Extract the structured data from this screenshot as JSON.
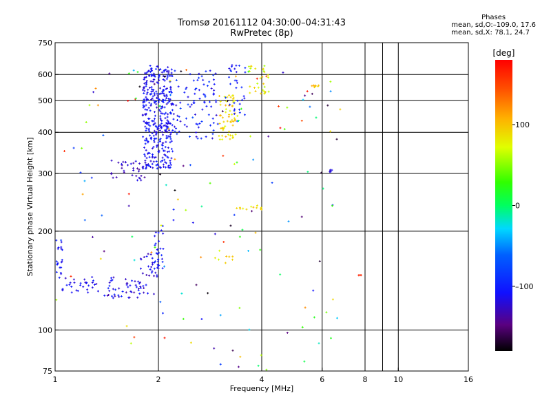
{
  "title_line1": "Tromsø 20161112 04:30:00–04:31:43",
  "title_line2": "RwPretec (8p)",
  "phases": {
    "title": "Phases",
    "line1": "mean, sd,O:–109.0, 17.6",
    "line2": "mean, sd,X:  78.1, 24.7"
  },
  "chart_data": {
    "type": "scatter",
    "xlabel": "Frequency [MHz]",
    "ylabel": "Stationary phase Virtual Height [km]",
    "xscale": "log",
    "yscale": "log",
    "xlim": [
      1,
      16
    ],
    "ylim": [
      75,
      750
    ],
    "xticks": [
      1,
      2,
      4,
      6,
      8,
      10,
      16
    ],
    "xtick_labels": [
      "1",
      "2",
      "4",
      "6",
      "8",
      "10",
      "16"
    ],
    "xgrid": [
      2,
      4,
      6,
      8,
      10
    ],
    "xminor": [
      9
    ],
    "yticks": [
      75,
      100,
      200,
      300,
      400,
      500,
      600,
      750
    ],
    "ytick_labels": [
      "75",
      "100",
      "200",
      "300",
      "400",
      "500",
      "600",
      "750"
    ],
    "ygrid": [
      100,
      200,
      300,
      400,
      500,
      600
    ],
    "grid": true,
    "colorbar": {
      "label": "[deg]",
      "range": [
        -180,
        180
      ],
      "ticks": [
        100,
        0,
        -100
      ],
      "tick_labels": [
        "100",
        "0",
        "–100"
      ]
    },
    "series": [
      {
        "mode": "O",
        "phase_mean": -109.0,
        "phase_sd": 17.6
      },
      {
        "mode": "X",
        "phase_mean": 78.1,
        "phase_sd": 24.7
      }
    ],
    "clusters": [
      {
        "x_range": [
          1.0,
          1.05
        ],
        "y_range": [
          140,
          195
        ],
        "phase_range": [
          -120,
          -95
        ],
        "count": 20
      },
      {
        "x_range": [
          1.05,
          1.35
        ],
        "y_range": [
          128,
          145
        ],
        "phase_range": [
          -130,
          -100
        ],
        "count": 30
      },
      {
        "x_range": [
          1.35,
          1.75
        ],
        "y_range": [
          125,
          145
        ],
        "phase_range": [
          -140,
          -95
        ],
        "count": 40
      },
      {
        "x_range": [
          1.75,
          2.0
        ],
        "y_range": [
          128,
          175
        ],
        "phase_range": [
          -135,
          -95
        ],
        "count": 40
      },
      {
        "x_range": [
          1.95,
          2.07
        ],
        "y_range": [
          150,
          210
        ],
        "phase_range": [
          -120,
          -95
        ],
        "count": 25
      },
      {
        "x_range": [
          1.45,
          1.85
        ],
        "y_range": [
          285,
          330
        ],
        "phase_range": [
          -140,
          -110
        ],
        "count": 35
      },
      {
        "x_range": [
          1.8,
          2.2
        ],
        "y_range": [
          310,
          640
        ],
        "phase_range": [
          -125,
          -95
        ],
        "count": 380
      },
      {
        "x_range": [
          2.2,
          3.0
        ],
        "y_range": [
          380,
          620
        ],
        "phase_range": [
          -125,
          -80
        ],
        "count": 90
      },
      {
        "x_range": [
          3.0,
          3.4
        ],
        "y_range": [
          380,
          520
        ],
        "phase_range": [
          70,
          110
        ],
        "count": 60
      },
      {
        "x_range": [
          3.2,
          3.6
        ],
        "y_range": [
          450,
          650
        ],
        "phase_range": [
          -120,
          -90
        ],
        "count": 30
      },
      {
        "x_range": [
          3.65,
          4.2
        ],
        "y_range": [
          520,
          640
        ],
        "phase_range": [
          55,
          100
        ],
        "count": 30
      },
      {
        "x_range": [
          5.6,
          5.9
        ],
        "y_range": [
          548,
          556
        ],
        "phase_range": [
          90,
          115
        ],
        "count": 8
      },
      {
        "x_range": [
          6.3,
          6.45
        ],
        "y_range": [
          295,
          310
        ],
        "phase_range": [
          -135,
          -110
        ],
        "count": 5
      },
      {
        "x_range": [
          3.3,
          4.0
        ],
        "y_range": [
          232,
          240
        ],
        "phase_range": [
          70,
          110
        ],
        "count": 12
      },
      {
        "x_range": [
          2.9,
          3.3
        ],
        "y_range": [
          160,
          175
        ],
        "phase_range": [
          60,
          100
        ],
        "count": 8
      },
      {
        "x_range": [
          7.6,
          7.8
        ],
        "y_range": [
          146,
          147
        ],
        "phase_range": [
          150,
          170
        ],
        "count": 3
      },
      {
        "x_range": [
          1.0,
          6.9
        ],
        "y_range": [
          75,
          650
        ],
        "phase_range": [
          -180,
          180
        ],
        "count": 150
      }
    ]
  }
}
